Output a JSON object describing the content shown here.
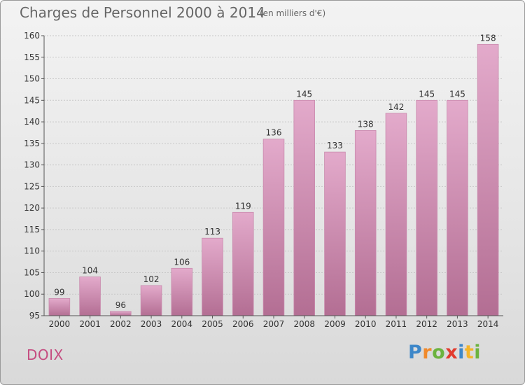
{
  "header": {
    "title": "Charges de Personnel 2000 à 2014",
    "unit": "(en milliers d'€)"
  },
  "footer": {
    "commune": "DOIX",
    "brand": "Proxiti"
  },
  "colors": {
    "bar_top": "#e3aacb",
    "bar_bottom": "#b36e93",
    "bar_stroke": "#c98aad",
    "commune_text": "#c54c80"
  },
  "chart_data": {
    "type": "bar",
    "title": "Charges de Personnel 2000 à 2014",
    "subtitle": "(en milliers d'€)",
    "xlabel": "",
    "ylabel": "",
    "categories": [
      "2000",
      "2001",
      "2002",
      "2003",
      "2004",
      "2005",
      "2006",
      "2007",
      "2008",
      "2009",
      "2010",
      "2011",
      "2012",
      "2013",
      "2014"
    ],
    "values": [
      99,
      104,
      96,
      102,
      106,
      113,
      119,
      136,
      145,
      133,
      138,
      142,
      145,
      145,
      158
    ],
    "ylim": [
      95,
      160
    ],
    "yticks": [
      95,
      100,
      105,
      110,
      115,
      120,
      125,
      130,
      135,
      140,
      145,
      150,
      155,
      160
    ],
    "grid": true,
    "data_labels": true
  }
}
